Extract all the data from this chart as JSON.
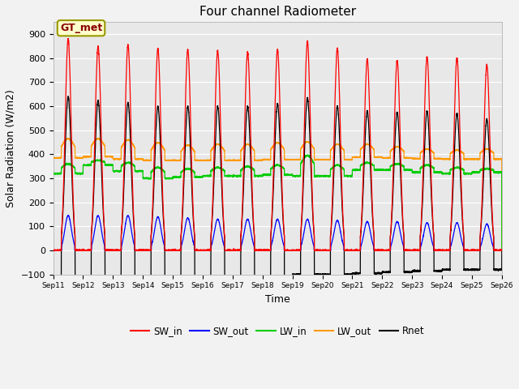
{
  "title": "Four channel Radiometer",
  "xlabel": "Time",
  "ylabel": "Solar Radiation (W/m2)",
  "ylim": [
    -100,
    950
  ],
  "num_days": 15,
  "colors": {
    "SW_in": "#ff0000",
    "SW_out": "#0000ff",
    "LW_in": "#00cc00",
    "LW_out": "#ff9900",
    "Rnet": "#000000"
  },
  "legend_label": "GT_met",
  "legend_box_color": "#ffffcc",
  "legend_box_border": "#999900",
  "background_color": "#e8e8e8",
  "grid_color": "#ffffff",
  "fig_bg": "#f2f2f2",
  "yticks": [
    -100,
    0,
    100,
    200,
    300,
    400,
    500,
    600,
    700,
    800,
    900
  ],
  "tick_labels": [
    "Sep 11",
    "Sep 12",
    "Sep 13",
    "Sep 14",
    "Sep 15",
    "Sep 16",
    "Sep 17",
    "Sep 18",
    "Sep 19",
    "Sep 20",
    "Sep 21",
    "Sep 22",
    "Sep 23",
    "Sep 24",
    "Sep 25",
    "Sep 26"
  ],
  "sw_in_peaks": [
    880,
    850,
    855,
    840,
    835,
    830,
    825,
    835,
    870,
    840,
    795,
    790,
    805,
    800,
    770
  ],
  "sw_out_peaks": [
    145,
    145,
    145,
    140,
    135,
    130,
    130,
    130,
    130,
    125,
    120,
    120,
    115,
    115,
    110
  ],
  "lw_in_base": [
    320,
    355,
    330,
    300,
    305,
    310,
    310,
    315,
    310,
    310,
    335,
    335,
    325,
    320,
    325
  ],
  "lw_in_peak": [
    360,
    375,
    365,
    345,
    340,
    345,
    350,
    355,
    395,
    355,
    365,
    360,
    355,
    345,
    340
  ],
  "lw_out_base": [
    385,
    390,
    380,
    375,
    375,
    375,
    375,
    378,
    378,
    378,
    388,
    385,
    382,
    380,
    380
  ],
  "lw_out_peak": [
    465,
    465,
    460,
    448,
    438,
    442,
    442,
    448,
    452,
    442,
    442,
    432,
    422,
    418,
    422
  ],
  "rnet_peaks": [
    640,
    625,
    615,
    600,
    600,
    600,
    600,
    610,
    635,
    600,
    580,
    575,
    580,
    570,
    545
  ],
  "rnet_night": [
    -120,
    -120,
    -118,
    -115,
    -110,
    -110,
    -110,
    -108,
    -100,
    -100,
    -95,
    -90,
    -85,
    -80,
    -80
  ]
}
